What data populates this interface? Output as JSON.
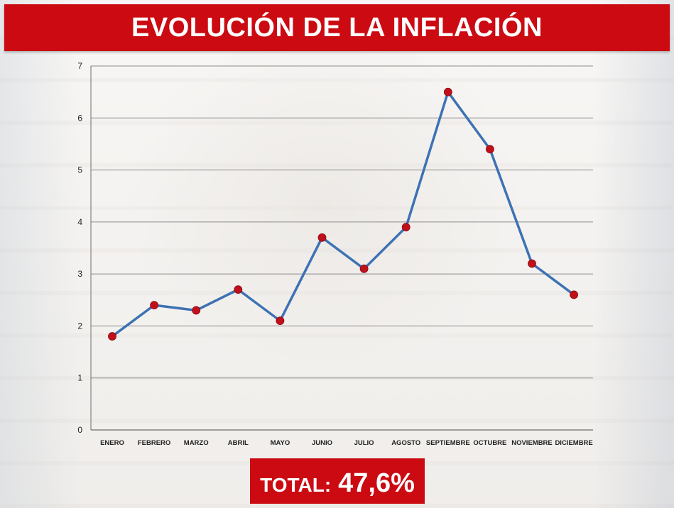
{
  "title": "EVOLUCIÓN DE LA INFLACIÓN",
  "total": {
    "label": "TOTAL:",
    "value": "47,6%"
  },
  "colors": {
    "banner": "#cc0a12",
    "line": "#3d72b4",
    "marker": "#c0101a",
    "grid": "#8c8c8c",
    "text": "#222222"
  },
  "chart_data": {
    "type": "line",
    "categories": [
      "ENERO",
      "FEBRERO",
      "MARZO",
      "ABRIL",
      "MAYO",
      "JUNIO",
      "JULIO",
      "AGOSTO",
      "SEPTIEMBRE",
      "OCTUBRE",
      "NOVIEMBRE",
      "DICIEMBRE"
    ],
    "series": [
      {
        "values": [
          1.8,
          2.4,
          2.3,
          2.7,
          2.1,
          3.7,
          3.1,
          3.9,
          6.5,
          5.4,
          3.2,
          2.6
        ]
      }
    ],
    "yticks": [
      "0",
      "1",
      "2",
      "3",
      "4",
      "5",
      "6",
      "7"
    ],
    "ylim": [
      0,
      7
    ],
    "grid": true,
    "legend": "none"
  }
}
